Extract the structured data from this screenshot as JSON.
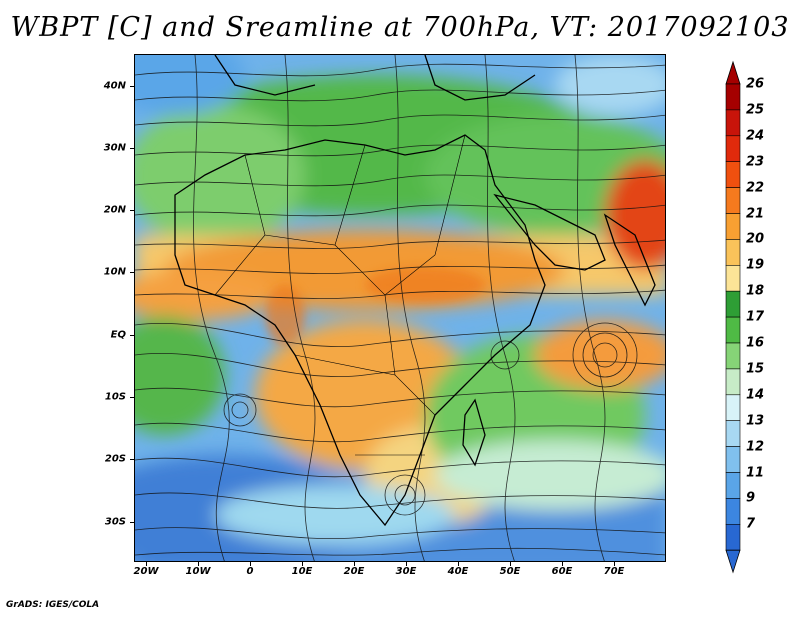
{
  "title": "WBPT [C] and Sreamline at 700hPa, VT: 2017092103",
  "footer": "GrADS: IGES/COLA",
  "axes": {
    "lat_labels": [
      "40N",
      "30N",
      "20N",
      "10N",
      "EQ",
      "10S",
      "20S",
      "30S"
    ],
    "lat_values": [
      40,
      30,
      20,
      10,
      0,
      -10,
      -20,
      -30
    ],
    "lon_labels": [
      "20W",
      "10W",
      "0",
      "10E",
      "20E",
      "30E",
      "40E",
      "50E",
      "60E",
      "70E"
    ],
    "lon_values": [
      -20,
      -10,
      0,
      10,
      20,
      30,
      40,
      50,
      60,
      70
    ],
    "lon_range": [
      -22,
      80
    ],
    "lat_range": [
      -36,
      45
    ]
  },
  "colorbar": {
    "labels": [
      "26",
      "25",
      "24",
      "23",
      "22",
      "21",
      "20",
      "19",
      "18",
      "17",
      "16",
      "15",
      "14",
      "13",
      "12",
      "11",
      "9",
      "7"
    ],
    "colors": [
      "#a50000",
      "#c8140a",
      "#e02a0c",
      "#f0500f",
      "#f57a1e",
      "#f8a032",
      "#fac35a",
      "#fce497",
      "#2e9e35",
      "#4fba45",
      "#86d477",
      "#c7ecc7",
      "#d8f3f8",
      "#a8d8f2",
      "#80c0ee",
      "#5aa5e8",
      "#3c86e0",
      "#2868d2"
    ]
  },
  "legend_colors": {
    "ocean_cool": "#5aa0e6",
    "green": "#4fba45",
    "orange": "#f6a13a"
  }
}
